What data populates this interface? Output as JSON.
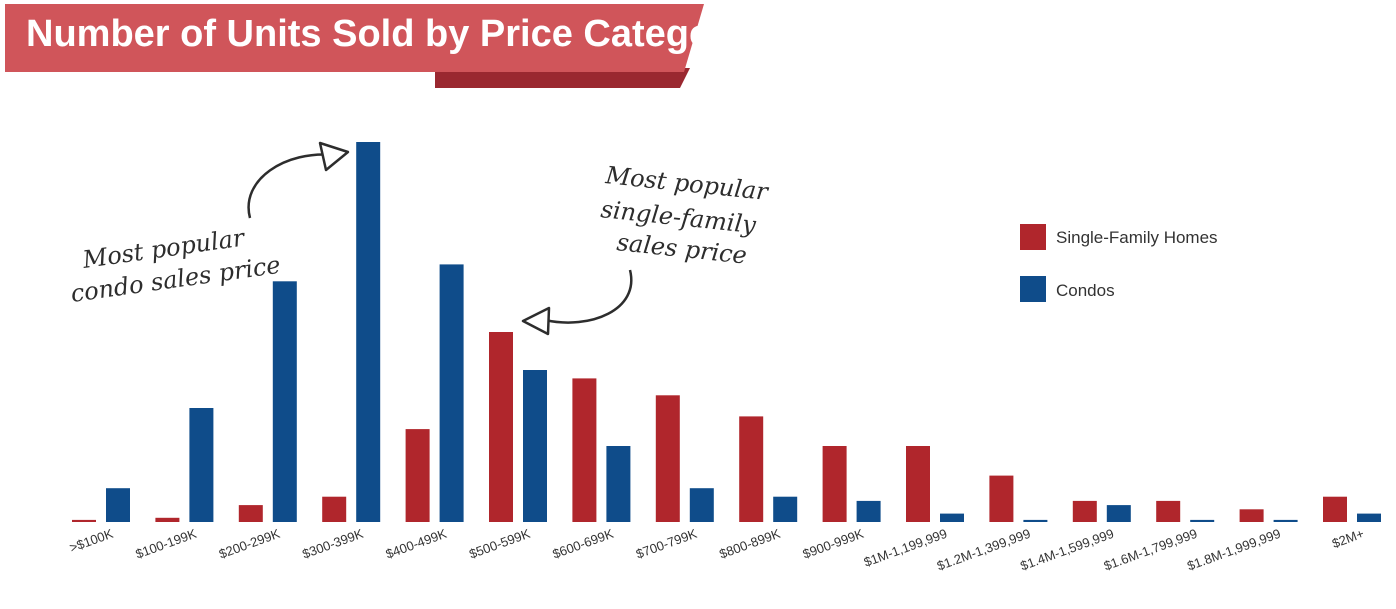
{
  "chart_data": {
    "type": "bar",
    "title": "Number of Units Sold by Price Category",
    "categories": [
      ">$100K",
      "$100-199K",
      "$200-299K",
      "$300-399K",
      "$400-499K",
      "$500-599K",
      "$600-699K",
      "$700-799K",
      "$800-899K",
      "$900-999K",
      "$1M-1,199,999",
      "$1.2M-1,399,999",
      "$1.4M-1,599,999",
      "$1.6M-1,799,999",
      "$1.8M-1,999,999",
      "$2M+"
    ],
    "series": [
      {
        "name": "Single-Family Homes",
        "color": "#b0262c",
        "values": [
          0.5,
          1,
          4,
          6,
          22,
          45,
          34,
          30,
          25,
          18,
          18,
          11,
          5,
          5,
          3,
          6
        ]
      },
      {
        "name": "Condos",
        "color": "#0f4c8a",
        "values": [
          8,
          27,
          57,
          90,
          61,
          36,
          18,
          8,
          6,
          5,
          2,
          0.5,
          4,
          0.5,
          0.5,
          2
        ]
      }
    ],
    "ylim": [
      0,
      90
    ],
    "xlabel": "",
    "ylabel": "",
    "grid": false,
    "legend_position": "right",
    "annotations": [
      {
        "text_lines": [
          "Most popular",
          "condo sales price"
        ],
        "target": "$300-399K"
      },
      {
        "text_lines": [
          "Most popular",
          "single-family",
          "sales price"
        ],
        "target": "$500-599K"
      }
    ]
  },
  "colors": {
    "banner": "#d0555a",
    "banner_shadow": "#9a2830"
  }
}
